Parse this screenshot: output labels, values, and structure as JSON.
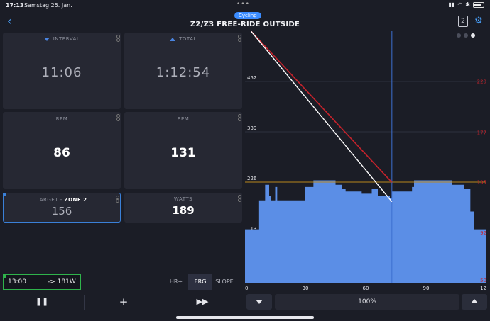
{
  "status": {
    "time": "17:13",
    "date": "Samstag 25. Jan."
  },
  "header": {
    "badge": "Cycling",
    "title": "Z2/Z3 FREE-RIDE OUTSIDE",
    "lap_count": "2"
  },
  "tiles": {
    "interval": {
      "label": "INTERVAL",
      "value": "11:06"
    },
    "total": {
      "label": "TOTAL",
      "value": "1:12:54"
    },
    "rpm": {
      "label": "RPM",
      "value": "86"
    },
    "bpm": {
      "label": "BPM",
      "value": "131"
    },
    "target": {
      "label": "TARGET",
      "zone": "ZONE 2",
      "value": "156"
    },
    "watts": {
      "label": "WATTS",
      "value": "189"
    }
  },
  "next_step": {
    "time": "13:00",
    "arrow_target": "-> 181W"
  },
  "modes": [
    "HR+",
    "ERG",
    "SLOPE"
  ],
  "active_mode": "ERG",
  "zoom": {
    "value": "100%"
  },
  "colors": {
    "accent": "#3b8cff",
    "power": "#5b8ee6",
    "hr": "#c8232c",
    "target_line": "#b8861c"
  },
  "chart_data": {
    "type": "area",
    "x_ticks": [
      "0",
      "30",
      "60",
      "90",
      "12"
    ],
    "y_left_ticks": [
      "452",
      "339",
      "226",
      "113"
    ],
    "y_right_ticks": [
      "220",
      "177",
      "135",
      "92",
      "50"
    ],
    "xlim": [
      0,
      120
    ],
    "ylim_left": [
      0,
      565
    ],
    "ylim_right": [
      50,
      263
    ],
    "cursor_x": 73,
    "target_line_y": 226,
    "power_steps": [
      [
        0,
        120
      ],
      [
        7,
        185
      ],
      [
        10,
        220
      ],
      [
        12,
        195
      ],
      [
        13,
        185
      ],
      [
        15,
        215
      ],
      [
        16,
        185
      ],
      [
        28,
        185
      ],
      [
        30,
        215
      ],
      [
        34,
        230
      ],
      [
        45,
        220
      ],
      [
        48,
        210
      ],
      [
        50,
        205
      ],
      [
        58,
        200
      ],
      [
        63,
        210
      ],
      [
        66,
        195
      ],
      [
        72,
        190
      ],
      [
        73,
        205
      ],
      [
        83,
        215
      ],
      [
        84,
        230
      ],
      [
        94,
        230
      ],
      [
        103,
        220
      ],
      [
        109,
        210
      ],
      [
        112,
        160
      ],
      [
        114,
        120
      ],
      [
        120,
        120
      ]
    ],
    "watts_line": [
      [
        3,
        565
      ],
      [
        73,
        182
      ]
    ],
    "hr_line": [
      [
        3,
        263
      ],
      [
        73,
        135
      ]
    ]
  }
}
